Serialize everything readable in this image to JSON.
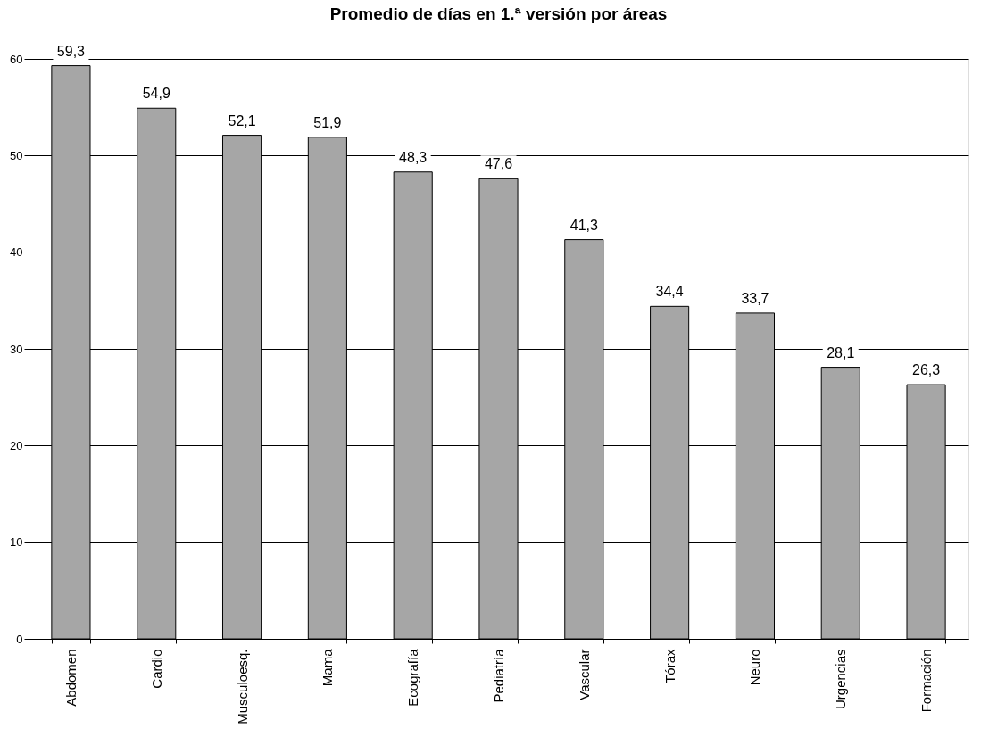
{
  "chart_data": {
    "type": "bar",
    "title": "Promedio de días en 1.ª versión por áreas",
    "categories": [
      "Abdomen",
      "Cardio",
      "Musculoesq.",
      "Mama",
      "Ecografía",
      "Pediatría",
      "Vascular",
      "Tórax",
      "Neuro",
      "Urgencias",
      "Formación"
    ],
    "values": [
      59.3,
      54.9,
      52.1,
      51.9,
      48.3,
      47.6,
      41.3,
      34.4,
      33.7,
      28.1,
      26.3
    ],
    "value_labels": [
      "59,3",
      "54,9",
      "52,1",
      "51,9",
      "48,3",
      "47,6",
      "41,3",
      "34,4",
      "33,7",
      "28,1",
      "26,3"
    ],
    "color": "#a6a6a6",
    "ylim": [
      0,
      60
    ],
    "yticks": [
      0,
      10,
      20,
      30,
      40,
      50,
      60
    ],
    "grid": "y"
  }
}
